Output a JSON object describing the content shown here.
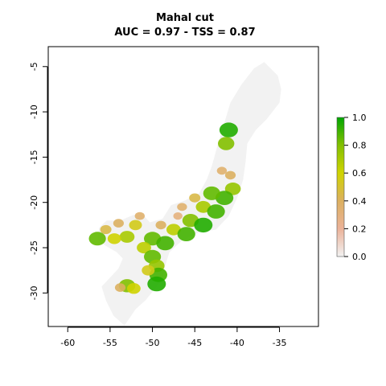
{
  "chart_data": {
    "type": "heatmap",
    "title": "Mahal cut",
    "subtitle": "AUC = 0.97 - TSS = 0.87",
    "xlabel": "",
    "ylabel": "",
    "xlim": [
      -62,
      -30
    ],
    "ylim": [
      -34,
      -3
    ],
    "x_ticks": [
      -60,
      -55,
      -50,
      -45,
      -40,
      -35
    ],
    "x_tick_labels": [
      "-60",
      "-55",
      "-50",
      "-45",
      "-40",
      "-35"
    ],
    "y_ticks": [
      -5,
      -10,
      -15,
      -20,
      -25,
      -30
    ],
    "y_tick_labels": [
      "-5",
      "-10",
      "-15",
      "-20",
      "-25",
      "-30"
    ],
    "grid": false,
    "legend": {
      "type": "colorbar",
      "placement": "right",
      "range": [
        0,
        1
      ],
      "ticks": [
        0.0,
        0.2,
        0.4,
        0.6,
        0.8,
        1.0
      ],
      "tick_labels": [
        "0.0",
        "0.2",
        "0.4",
        "0.6",
        "0.8",
        "1.0"
      ],
      "colors": [
        "#f2f2f2",
        "#ebb299",
        "#dcb060",
        "#cfd300",
        "#83c000",
        "#00a600"
      ]
    },
    "background_region_color": "#f2f2f2",
    "suitability_cells": [
      {
        "lon": -41.0,
        "lat": -12.0,
        "value": 0.95
      },
      {
        "lon": -41.3,
        "lat": -13.5,
        "value": 0.8
      },
      {
        "lon": -41.8,
        "lat": -16.5,
        "value": 0.35
      },
      {
        "lon": -40.8,
        "lat": -17.0,
        "value": 0.4
      },
      {
        "lon": -40.5,
        "lat": -18.5,
        "value": 0.75
      },
      {
        "lon": -41.5,
        "lat": -19.5,
        "value": 0.9
      },
      {
        "lon": -43.0,
        "lat": -19.0,
        "value": 0.85
      },
      {
        "lon": -44.0,
        "lat": -20.5,
        "value": 0.7
      },
      {
        "lon": -42.5,
        "lat": -21.0,
        "value": 0.9
      },
      {
        "lon": -45.0,
        "lat": -19.5,
        "value": 0.45
      },
      {
        "lon": -46.5,
        "lat": -20.5,
        "value": 0.35
      },
      {
        "lon": -47.0,
        "lat": -21.5,
        "value": 0.3
      },
      {
        "lon": -45.5,
        "lat": -22.0,
        "value": 0.8
      },
      {
        "lon": -44.0,
        "lat": -22.5,
        "value": 0.95
      },
      {
        "lon": -47.5,
        "lat": -23.0,
        "value": 0.65
      },
      {
        "lon": -46.0,
        "lat": -23.5,
        "value": 0.9
      },
      {
        "lon": -49.0,
        "lat": -22.5,
        "value": 0.4
      },
      {
        "lon": -51.5,
        "lat": -21.5,
        "value": 0.35
      },
      {
        "lon": -52.0,
        "lat": -22.5,
        "value": 0.55
      },
      {
        "lon": -50.0,
        "lat": -24.0,
        "value": 0.85
      },
      {
        "lon": -48.5,
        "lat": -24.5,
        "value": 0.9
      },
      {
        "lon": -53.0,
        "lat": -23.8,
        "value": 0.7
      },
      {
        "lon": -54.5,
        "lat": -24.0,
        "value": 0.6
      },
      {
        "lon": -55.5,
        "lat": -23.0,
        "value": 0.45
      },
      {
        "lon": -56.5,
        "lat": -24.0,
        "value": 0.85
      },
      {
        "lon": -54.0,
        "lat": -22.3,
        "value": 0.4
      },
      {
        "lon": -51.0,
        "lat": -25.0,
        "value": 0.65
      },
      {
        "lon": -50.0,
        "lat": -26.0,
        "value": 0.85
      },
      {
        "lon": -49.5,
        "lat": -27.0,
        "value": 0.75
      },
      {
        "lon": -49.3,
        "lat": -28.0,
        "value": 0.9
      },
      {
        "lon": -49.5,
        "lat": -29.0,
        "value": 0.95
      },
      {
        "lon": -50.5,
        "lat": -27.5,
        "value": 0.55
      },
      {
        "lon": -53.0,
        "lat": -29.2,
        "value": 0.8
      },
      {
        "lon": -52.2,
        "lat": -29.5,
        "value": 0.6
      },
      {
        "lon": -53.8,
        "lat": -29.4,
        "value": 0.4
      }
    ]
  }
}
